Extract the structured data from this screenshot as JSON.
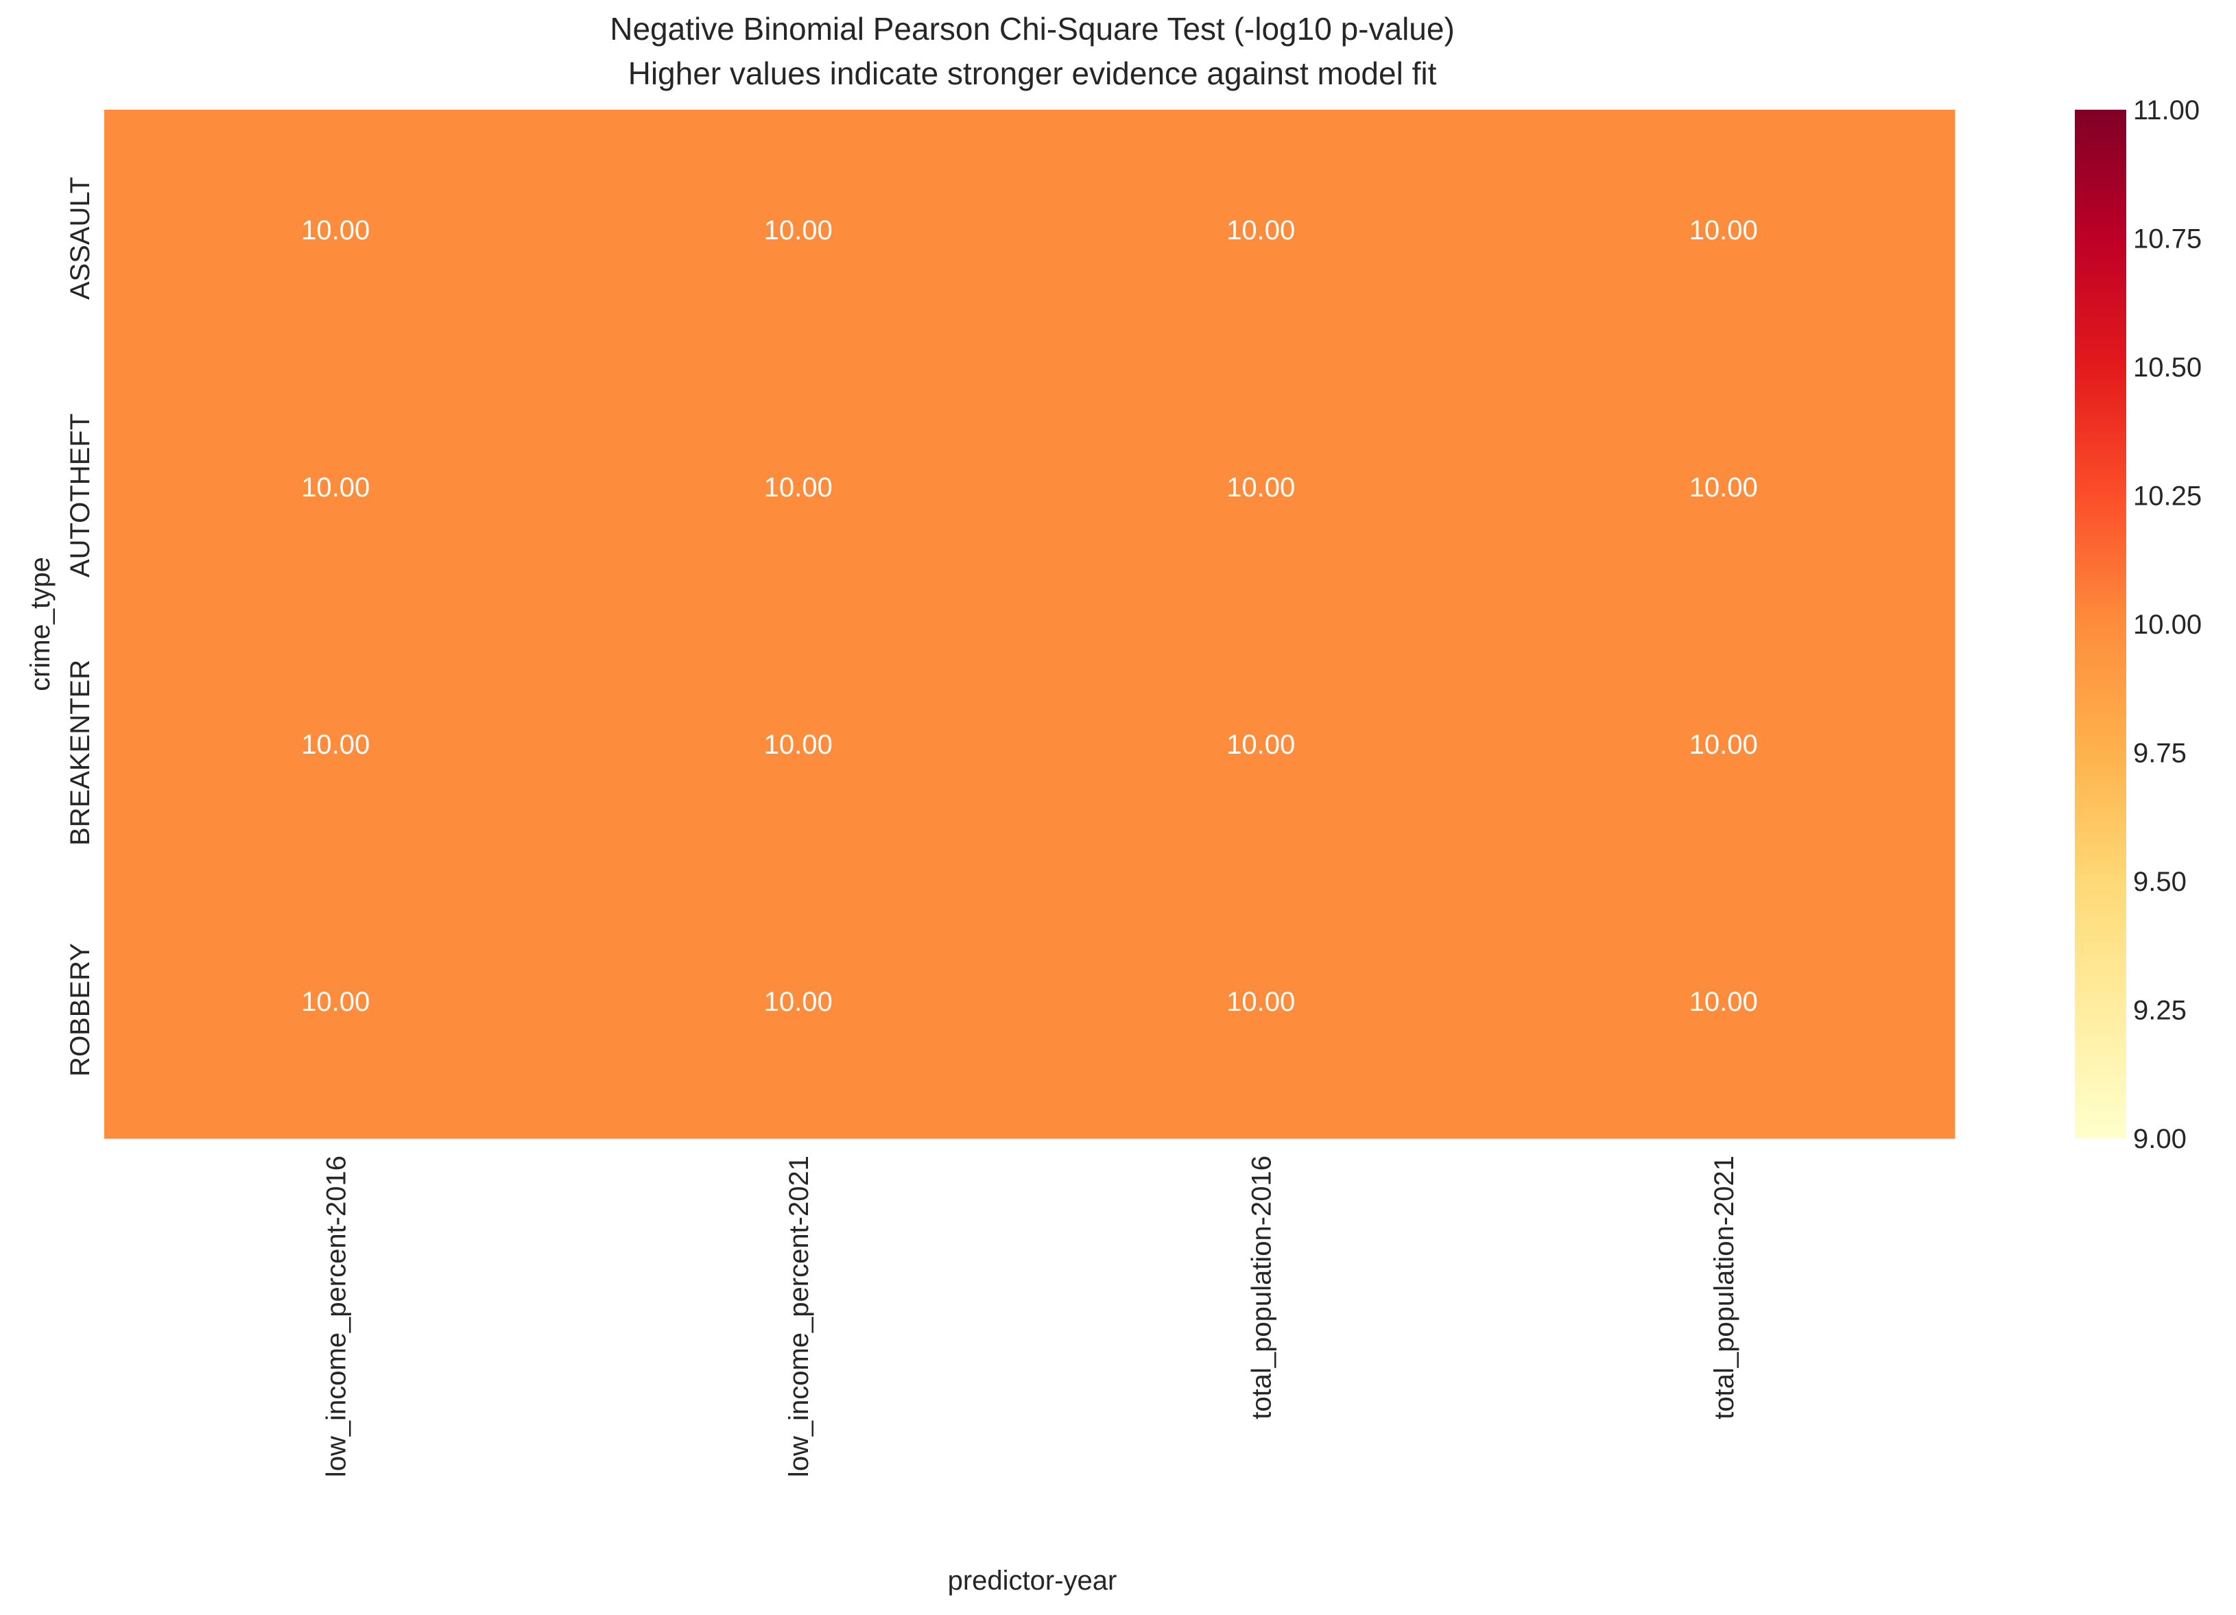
{
  "chart_data": {
    "type": "heatmap",
    "title": "Negative Binomial Pearson Chi-Square Test (-log10 p-value)",
    "subtitle": "Higher values indicate stronger evidence against model fit",
    "xlabel": "predictor-year",
    "ylabel": "crime_type",
    "x_categories": [
      "low_income_percent-2016",
      "low_income_percent-2021",
      "total_population-2016",
      "total_population-2021"
    ],
    "y_categories": [
      "ASSAULT",
      "AUTOTHEFT",
      "BREAKENTER",
      "ROBBERY"
    ],
    "values": [
      [
        10.0,
        10.0,
        10.0,
        10.0
      ],
      [
        10.0,
        10.0,
        10.0,
        10.0
      ],
      [
        10.0,
        10.0,
        10.0,
        10.0
      ],
      [
        10.0,
        10.0,
        10.0,
        10.0
      ]
    ],
    "value_labels": [
      [
        "10.00",
        "10.00",
        "10.00",
        "10.00"
      ],
      [
        "10.00",
        "10.00",
        "10.00",
        "10.00"
      ],
      [
        "10.00",
        "10.00",
        "10.00",
        "10.00"
      ],
      [
        "10.00",
        "10.00",
        "10.00",
        "10.00"
      ]
    ],
    "colorbar": {
      "colormap": "YlOrRd",
      "range": [
        9.0,
        11.0
      ],
      "ticks": [
        "9.00",
        "9.25",
        "9.50",
        "9.75",
        "10.00",
        "10.25",
        "10.50",
        "10.75",
        "11.00"
      ]
    },
    "colors": {
      "cell": "#fd8d3c",
      "cell_text": "#ffffff"
    }
  }
}
